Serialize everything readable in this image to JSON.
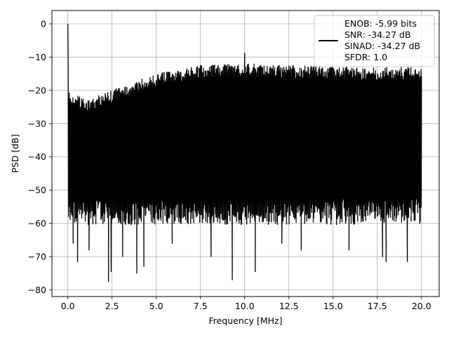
{
  "chart_data": {
    "type": "line",
    "title": "",
    "xlabel": "Frequency [MHz]",
    "ylabel": "PSD [dB]",
    "xlim": [
      -0.9,
      21.0
    ],
    "ylim": [
      -82,
      4
    ],
    "grid": true,
    "x_ticks": [
      0.0,
      2.5,
      5.0,
      7.5,
      10.0,
      12.5,
      15.0,
      17.5,
      20.0
    ],
    "x_tick_labels": [
      "0.0",
      "2.5",
      "5.0",
      "7.5",
      "10.0",
      "12.5",
      "15.0",
      "17.5",
      "20.0"
    ],
    "y_ticks": [
      0,
      -10,
      -20,
      -30,
      -40,
      -50,
      -60,
      -70,
      -80
    ],
    "y_tick_labels": [
      "0",
      "−10",
      "−20",
      "−30",
      "−40",
      "−50",
      "−60",
      "−70",
      "−80"
    ],
    "legend": {
      "placement": "top-right",
      "lines": [
        "ENOB: -5.99 bits",
        "SNR: -34.27 dB",
        "SINAD: -34.27 dB",
        "SFDR: 1.0"
      ]
    },
    "series": [
      {
        "color": "#000000",
        "description_points": {
          "peak": {
            "x": 0.0,
            "y": 0
          },
          "envelope_top": [
            {
              "x": 0.05,
              "y": -20
            },
            {
              "x": 1.0,
              "y": -23
            },
            {
              "x": 2.5,
              "y": -20
            },
            {
              "x": 4.0,
              "y": -17
            },
            {
              "x": 5.0,
              "y": -15
            },
            {
              "x": 6.5,
              "y": -13.5
            },
            {
              "x": 7.5,
              "y": -12.5
            },
            {
              "x": 10.0,
              "y": -12
            },
            {
              "x": 12.5,
              "y": -12.5
            },
            {
              "x": 15.0,
              "y": -13
            },
            {
              "x": 17.5,
              "y": -13
            },
            {
              "x": 20.0,
              "y": -13
            }
          ],
          "envelope_bottom_typical": -58,
          "notable_dips": [
            {
              "x": 0.3,
              "y": -66
            },
            {
              "x": 0.55,
              "y": -71.5
            },
            {
              "x": 1.2,
              "y": -68
            },
            {
              "x": 2.3,
              "y": -77.5
            },
            {
              "x": 2.45,
              "y": -74.5
            },
            {
              "x": 3.1,
              "y": -70
            },
            {
              "x": 3.9,
              "y": -75
            },
            {
              "x": 4.3,
              "y": -73
            },
            {
              "x": 5.9,
              "y": -66
            },
            {
              "x": 8.1,
              "y": -70
            },
            {
              "x": 9.3,
              "y": -77
            },
            {
              "x": 10.6,
              "y": -74.5
            },
            {
              "x": 12.1,
              "y": -66
            },
            {
              "x": 13.2,
              "y": -68
            },
            {
              "x": 15.9,
              "y": -68
            },
            {
              "x": 17.8,
              "y": -70
            },
            {
              "x": 18.0,
              "y": -71.5
            },
            {
              "x": 19.2,
              "y": -71.5
            }
          ],
          "notable_spikes": [
            {
              "x": 10.0,
              "y": -8.8
            }
          ]
        }
      }
    ]
  }
}
